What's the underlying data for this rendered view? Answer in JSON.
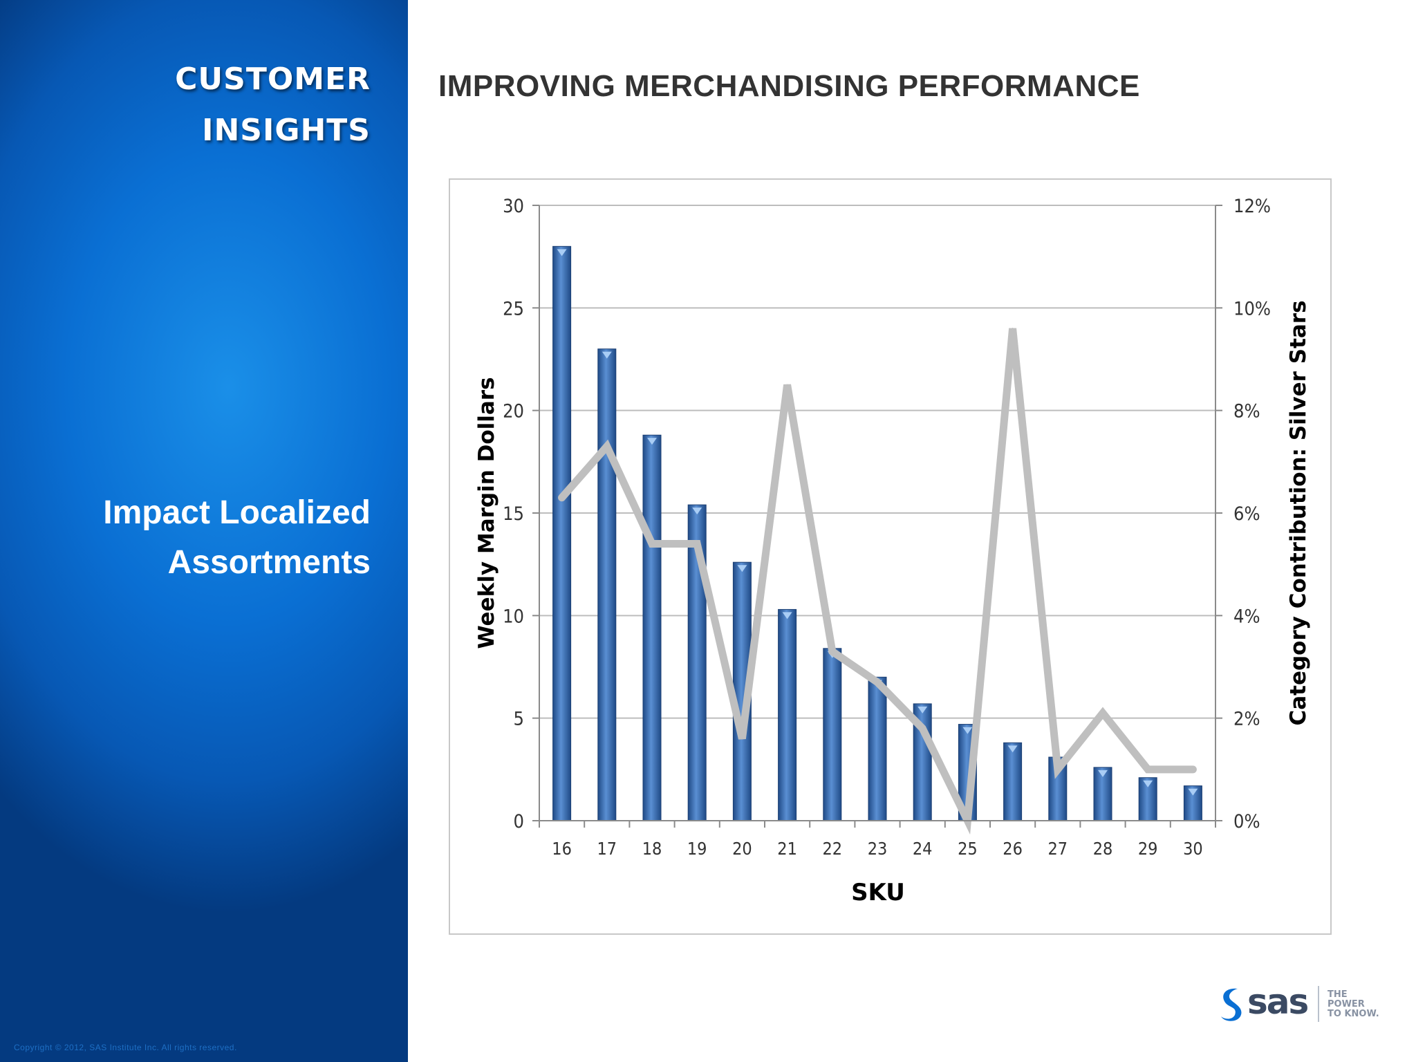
{
  "sidebar": {
    "title_lines": [
      "CUSTOMER",
      "INSIGHTS"
    ],
    "subtitle_lines": [
      "Impact Localized",
      "Assortments"
    ],
    "copyright": "Copyright © 2012, SAS Institute Inc. All rights reserved."
  },
  "page_title": "IMPROVING MERCHANDISING PERFORMANCE",
  "logo": {
    "brand": "sas",
    "tagline_lines": [
      "THE",
      "POWER",
      "TO KNOW."
    ]
  },
  "colors": {
    "bar": "#3c6eb0",
    "line": "#bfbfbf",
    "sidebar": "#0a6fd3"
  },
  "chart_data": {
    "type": "bar",
    "xlabel": "SKU",
    "ylabel": "Weekly Margin Dollars",
    "y2label": "Category Contribution: Silver Stars",
    "categories": [
      "16",
      "17",
      "18",
      "19",
      "20",
      "21",
      "22",
      "23",
      "24",
      "25",
      "26",
      "27",
      "28",
      "29",
      "30"
    ],
    "ylim": [
      0,
      30
    ],
    "yticks": [
      "0",
      "5",
      "10",
      "15",
      "20",
      "25",
      "30"
    ],
    "y2lim": [
      0,
      12
    ],
    "y2ticks": [
      "0%",
      "2%",
      "4%",
      "6%",
      "8%",
      "10%",
      "12%"
    ],
    "grid": true,
    "series": [
      {
        "type": "bar",
        "axis": "left",
        "values": [
          28,
          23,
          18.8,
          15.4,
          12.6,
          10.3,
          8.4,
          7,
          5.7,
          4.7,
          3.8,
          3.1,
          2.6,
          2.1,
          1.7
        ]
      },
      {
        "type": "line",
        "axis": "right",
        "values": [
          6.3,
          7.3,
          5.4,
          5.4,
          1.6,
          8.5,
          3.3,
          2.7,
          1.8,
          0,
          9.6,
          1.0,
          2.1,
          1.0,
          1.0
        ]
      }
    ]
  }
}
